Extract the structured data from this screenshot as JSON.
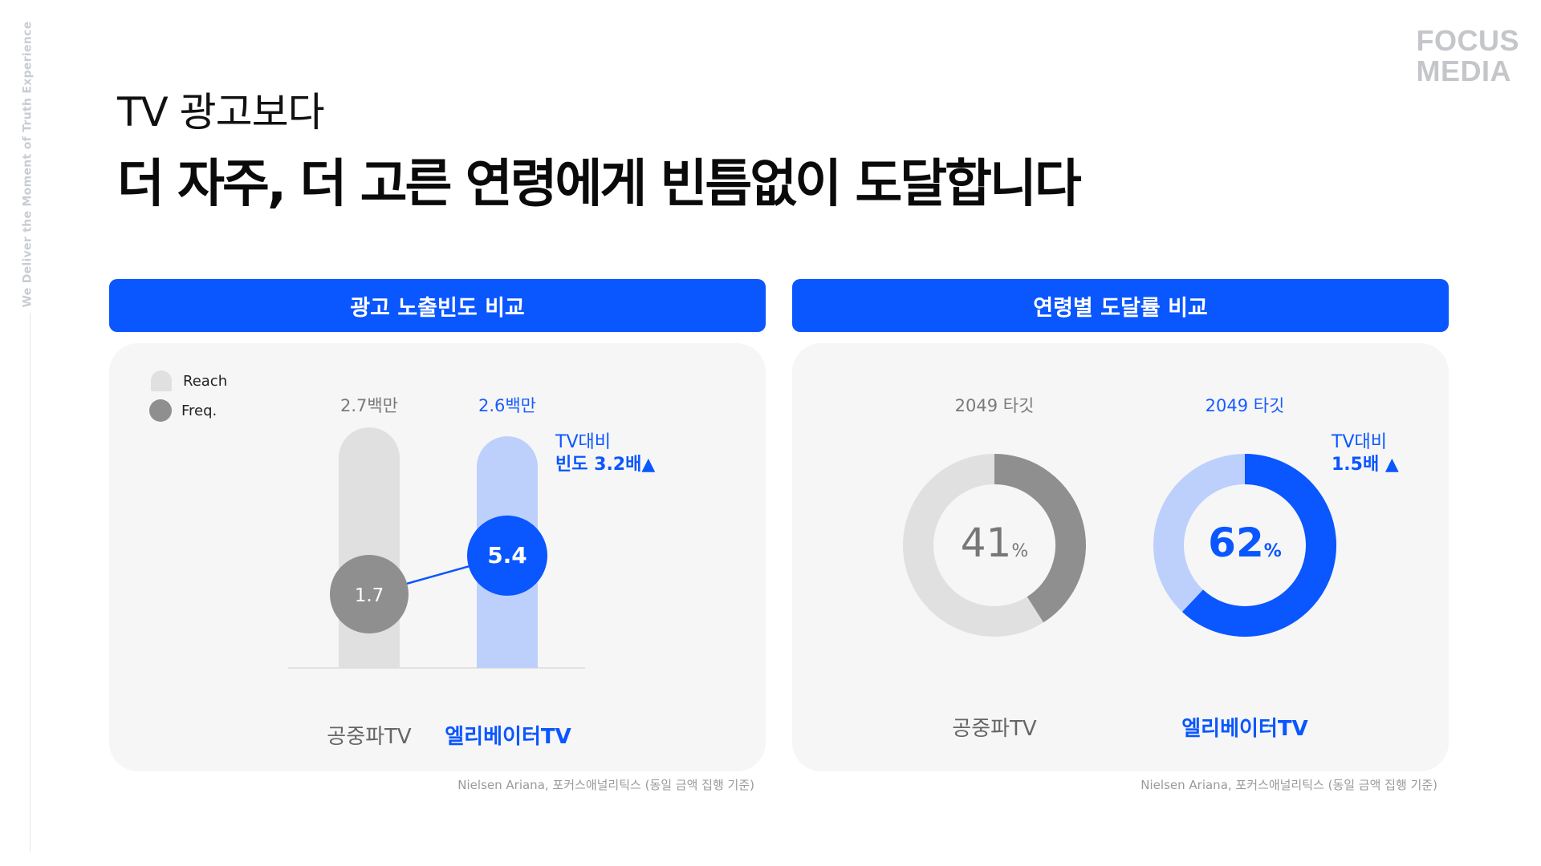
{
  "side_text": "We Deliver the Moment of Truth Experience",
  "logo": {
    "line1": "FOCUS",
    "line2": "MEDIA"
  },
  "title": {
    "line1": "TV 광고보다",
    "line2": "더 자주, 더 고른 연령에게 빈틈없이 도달합니다"
  },
  "colors": {
    "accent": "#0a56ff",
    "accent_light": "#bcd0fb",
    "gray_dark": "#8f8f8f",
    "gray_light": "#e0e0e0",
    "panel_bg": "#f6f6f6"
  },
  "left_panel": {
    "header": "광고 노출빈도 비교",
    "legend": {
      "reach": "Reach",
      "freq": "Freq."
    },
    "note_line1": "TV대비",
    "note_line2": "빈도 3.2배▲",
    "source": "Nielsen Ariana, 포커스애널리틱스 (동일 금액 집행 기준)"
  },
  "right_panel": {
    "header": "연령별 도달률 비교",
    "note_line1": "TV대비",
    "note_line2": "1.5배 ▲",
    "source": "Nielsen Ariana, 포커스애널리틱스 (동일 금액 집행 기준)"
  },
  "chart_data": [
    {
      "type": "bar",
      "title": "광고 노출빈도 비교",
      "categories": [
        "공중파TV",
        "엘리베이터TV"
      ],
      "series": [
        {
          "name": "Reach",
          "values": [
            2.7,
            2.6
          ],
          "labels": [
            "2.7백만",
            "2.6백만"
          ]
        },
        {
          "name": "Freq.",
          "values": [
            1.7,
            5.4
          ],
          "labels": [
            "1.7",
            "5.4"
          ]
        }
      ]
    },
    {
      "type": "pie",
      "title": "연령별 도달률 비교",
      "categories": [
        "공중파TV",
        "엘리베이터TV"
      ],
      "top_label": "2049 타깃",
      "values": [
        41,
        62
      ],
      "unit": "%"
    }
  ]
}
